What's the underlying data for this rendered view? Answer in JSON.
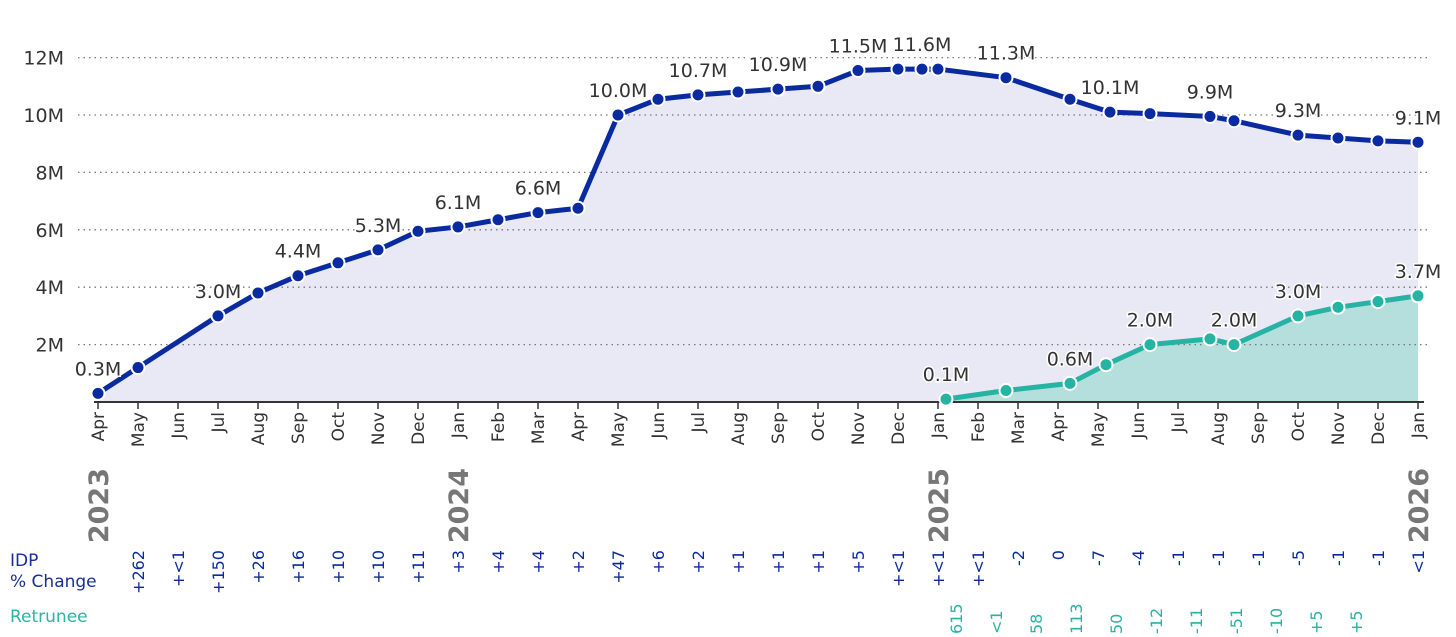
{
  "chart_data": {
    "type": "area",
    "yticks": [
      "12M",
      "10M",
      "8M",
      "6M",
      "4M",
      "2M"
    ],
    "ytick_values": [
      12,
      10,
      8,
      6,
      4,
      2
    ],
    "ylim": [
      0,
      12
    ],
    "month_labels": [
      "Apr",
      "May",
      "Jun",
      "Jul",
      "Aug",
      "Sep",
      "Oct",
      "Nov",
      "Dec",
      "Jan",
      "Feb",
      "Mar",
      "Apr",
      "May",
      "Jun",
      "Jul",
      "Aug",
      "Sep",
      "Oct",
      "Nov",
      "Dec",
      "Jan",
      "Feb",
      "Mar",
      "Apr",
      "May",
      "Jun",
      "Jul",
      "Aug",
      "Sep",
      "Oct",
      "Nov",
      "Dec",
      "Jan"
    ],
    "years": [
      {
        "label": "2023",
        "index": 0
      },
      {
        "label": "2024",
        "index": 9
      },
      {
        "label": "2025",
        "index": 21
      },
      {
        "label": "2026",
        "index": 33
      }
    ],
    "grid": true,
    "colors": {
      "idp": "#0a2aa0",
      "idp_fill": "#e8e9f5",
      "returnee": "#27b3a4",
      "returnee_fill": "#b4dfdc",
      "grid": "#777777",
      "axis": "#333333",
      "text": "#333333"
    },
    "series": [
      {
        "key": "idp",
        "points": [
          {
            "x": 0,
            "y": 0.3
          },
          {
            "x": 1,
            "y": 1.2
          },
          {
            "x": 3,
            "y": 3.0
          },
          {
            "x": 4,
            "y": 3.8
          },
          {
            "x": 5,
            "y": 4.4
          },
          {
            "x": 6,
            "y": 4.85
          },
          {
            "x": 7,
            "y": 5.3
          },
          {
            "x": 8,
            "y": 5.95
          },
          {
            "x": 9,
            "y": 6.1
          },
          {
            "x": 10,
            "y": 6.35
          },
          {
            "x": 11,
            "y": 6.6
          },
          {
            "x": 12,
            "y": 6.75
          },
          {
            "x": 13,
            "y": 10.0
          },
          {
            "x": 14,
            "y": 10.55
          },
          {
            "x": 15,
            "y": 10.7
          },
          {
            "x": 16,
            "y": 10.8
          },
          {
            "x": 17,
            "y": 10.9
          },
          {
            "x": 18,
            "y": 11.0
          },
          {
            "x": 19,
            "y": 11.55
          },
          {
            "x": 20,
            "y": 11.6
          },
          {
            "x": 20.6,
            "y": 11.6
          },
          {
            "x": 21,
            "y": 11.6
          },
          {
            "x": 22.7,
            "y": 11.3
          },
          {
            "x": 24.3,
            "y": 10.55
          },
          {
            "x": 25.3,
            "y": 10.1
          },
          {
            "x": 26.3,
            "y": 10.05
          },
          {
            "x": 27.8,
            "y": 9.95
          },
          {
            "x": 28.4,
            "y": 9.8
          },
          {
            "x": 30,
            "y": 9.3
          },
          {
            "x": 31,
            "y": 9.2
          },
          {
            "x": 32,
            "y": 9.1
          },
          {
            "x": 33,
            "y": 9.05
          }
        ],
        "labels": [
          {
            "text": "0.3M",
            "x": 0,
            "y": 0.3
          },
          {
            "text": "3.0M",
            "x": 3,
            "y": 3.0
          },
          {
            "text": "4.4M",
            "x": 5,
            "y": 4.4
          },
          {
            "text": "5.3M",
            "x": 7,
            "y": 5.3
          },
          {
            "text": "6.1M",
            "x": 9,
            "y": 6.1
          },
          {
            "text": "6.6M",
            "x": 11,
            "y": 6.6
          },
          {
            "text": "10.0M",
            "x": 13,
            "y": 10.0
          },
          {
            "text": "10.7M",
            "x": 15,
            "y": 10.7
          },
          {
            "text": "10.9M",
            "x": 17,
            "y": 10.9
          },
          {
            "text": "11.5M",
            "x": 19,
            "y": 11.55
          },
          {
            "text": "11.6M",
            "x": 20.6,
            "y": 11.6
          },
          {
            "text": "11.3M",
            "x": 22.7,
            "y": 11.3
          },
          {
            "text": "10.1M",
            "x": 25.3,
            "y": 10.1
          },
          {
            "text": "9.9M",
            "x": 27.8,
            "y": 9.95
          },
          {
            "text": "9.3M",
            "x": 30,
            "y": 9.3
          },
          {
            "text": "9.1M",
            "x": 33,
            "y": 9.05
          }
        ]
      },
      {
        "key": "returnee",
        "points": [
          {
            "x": 21.2,
            "y": 0.1
          },
          {
            "x": 22.7,
            "y": 0.4
          },
          {
            "x": 24.3,
            "y": 0.65
          },
          {
            "x": 25.2,
            "y": 1.3
          },
          {
            "x": 26.3,
            "y": 2.0
          },
          {
            "x": 27.8,
            "y": 2.2
          },
          {
            "x": 28.4,
            "y": 2.0
          },
          {
            "x": 30,
            "y": 3.0
          },
          {
            "x": 31,
            "y": 3.3
          },
          {
            "x": 32,
            "y": 3.5
          },
          {
            "x": 33,
            "y": 3.7
          }
        ],
        "labels": [
          {
            "text": "0.1M",
            "x": 21.2,
            "y": 0.1
          },
          {
            "text": "0.6M",
            "x": 24.3,
            "y": 0.65
          },
          {
            "text": "2.0M",
            "x": 26.3,
            "y": 2.0
          },
          {
            "text": "2.0M",
            "x": 28.4,
            "y": 2.0
          },
          {
            "text": "3.0M",
            "x": 30,
            "y": 3.0
          },
          {
            "text": "3.7M",
            "x": 33,
            "y": 3.7
          }
        ]
      }
    ],
    "rows": {
      "idp": {
        "label_line1": "IDP",
        "label_line2": "% Change",
        "values": [
          {
            "text": "+262",
            "x": 1
          },
          {
            "text": "+<1",
            "x": 2
          },
          {
            "text": "+150",
            "x": 3
          },
          {
            "text": "+26",
            "x": 4
          },
          {
            "text": "+16",
            "x": 5
          },
          {
            "text": "+10",
            "x": 6
          },
          {
            "text": "+10",
            "x": 7
          },
          {
            "text": "+11",
            "x": 8
          },
          {
            "text": "+3",
            "x": 9
          },
          {
            "text": "+4",
            "x": 10
          },
          {
            "text": "+4",
            "x": 11
          },
          {
            "text": "+2",
            "x": 12
          },
          {
            "text": "+47",
            "x": 13
          },
          {
            "text": "+6",
            "x": 14
          },
          {
            "text": "+2",
            "x": 15
          },
          {
            "text": "+1",
            "x": 16
          },
          {
            "text": "+1",
            "x": 17
          },
          {
            "text": "+1",
            "x": 18
          },
          {
            "text": "+5",
            "x": 19
          },
          {
            "text": "+<1",
            "x": 20
          },
          {
            "text": "+<1",
            "x": 21
          },
          {
            "text": "+<1",
            "x": 22
          },
          {
            "text": "-2",
            "x": 23
          },
          {
            "text": "0",
            "x": 24
          },
          {
            "text": "-7",
            "x": 25
          },
          {
            "text": "-4",
            "x": 26
          },
          {
            "text": "-1",
            "x": 27
          },
          {
            "text": "-1",
            "x": 28
          },
          {
            "text": "-1",
            "x": 29
          },
          {
            "text": "-5",
            "x": 30
          },
          {
            "text": "-1",
            "x": 31
          },
          {
            "text": "-1",
            "x": 32
          },
          {
            "text": "<1",
            "x": 33
          }
        ]
      },
      "returnee": {
        "label": "Retrunee",
        "values": [
          {
            "text": "615",
            "x": 22
          },
          {
            "text": "<1",
            "x": 23
          },
          {
            "text": "58",
            "x": 24
          },
          {
            "text": "113",
            "x": 25
          },
          {
            "text": "50",
            "x": 26
          },
          {
            "text": "-12",
            "x": 27
          },
          {
            "text": "-11",
            "x": 28
          },
          {
            "text": "-51",
            "x": 29
          },
          {
            "text": "-10",
            "x": 30
          },
          {
            "text": "+5",
            "x": 31
          },
          {
            "text": "+5",
            "x": 32
          }
        ]
      }
    }
  }
}
